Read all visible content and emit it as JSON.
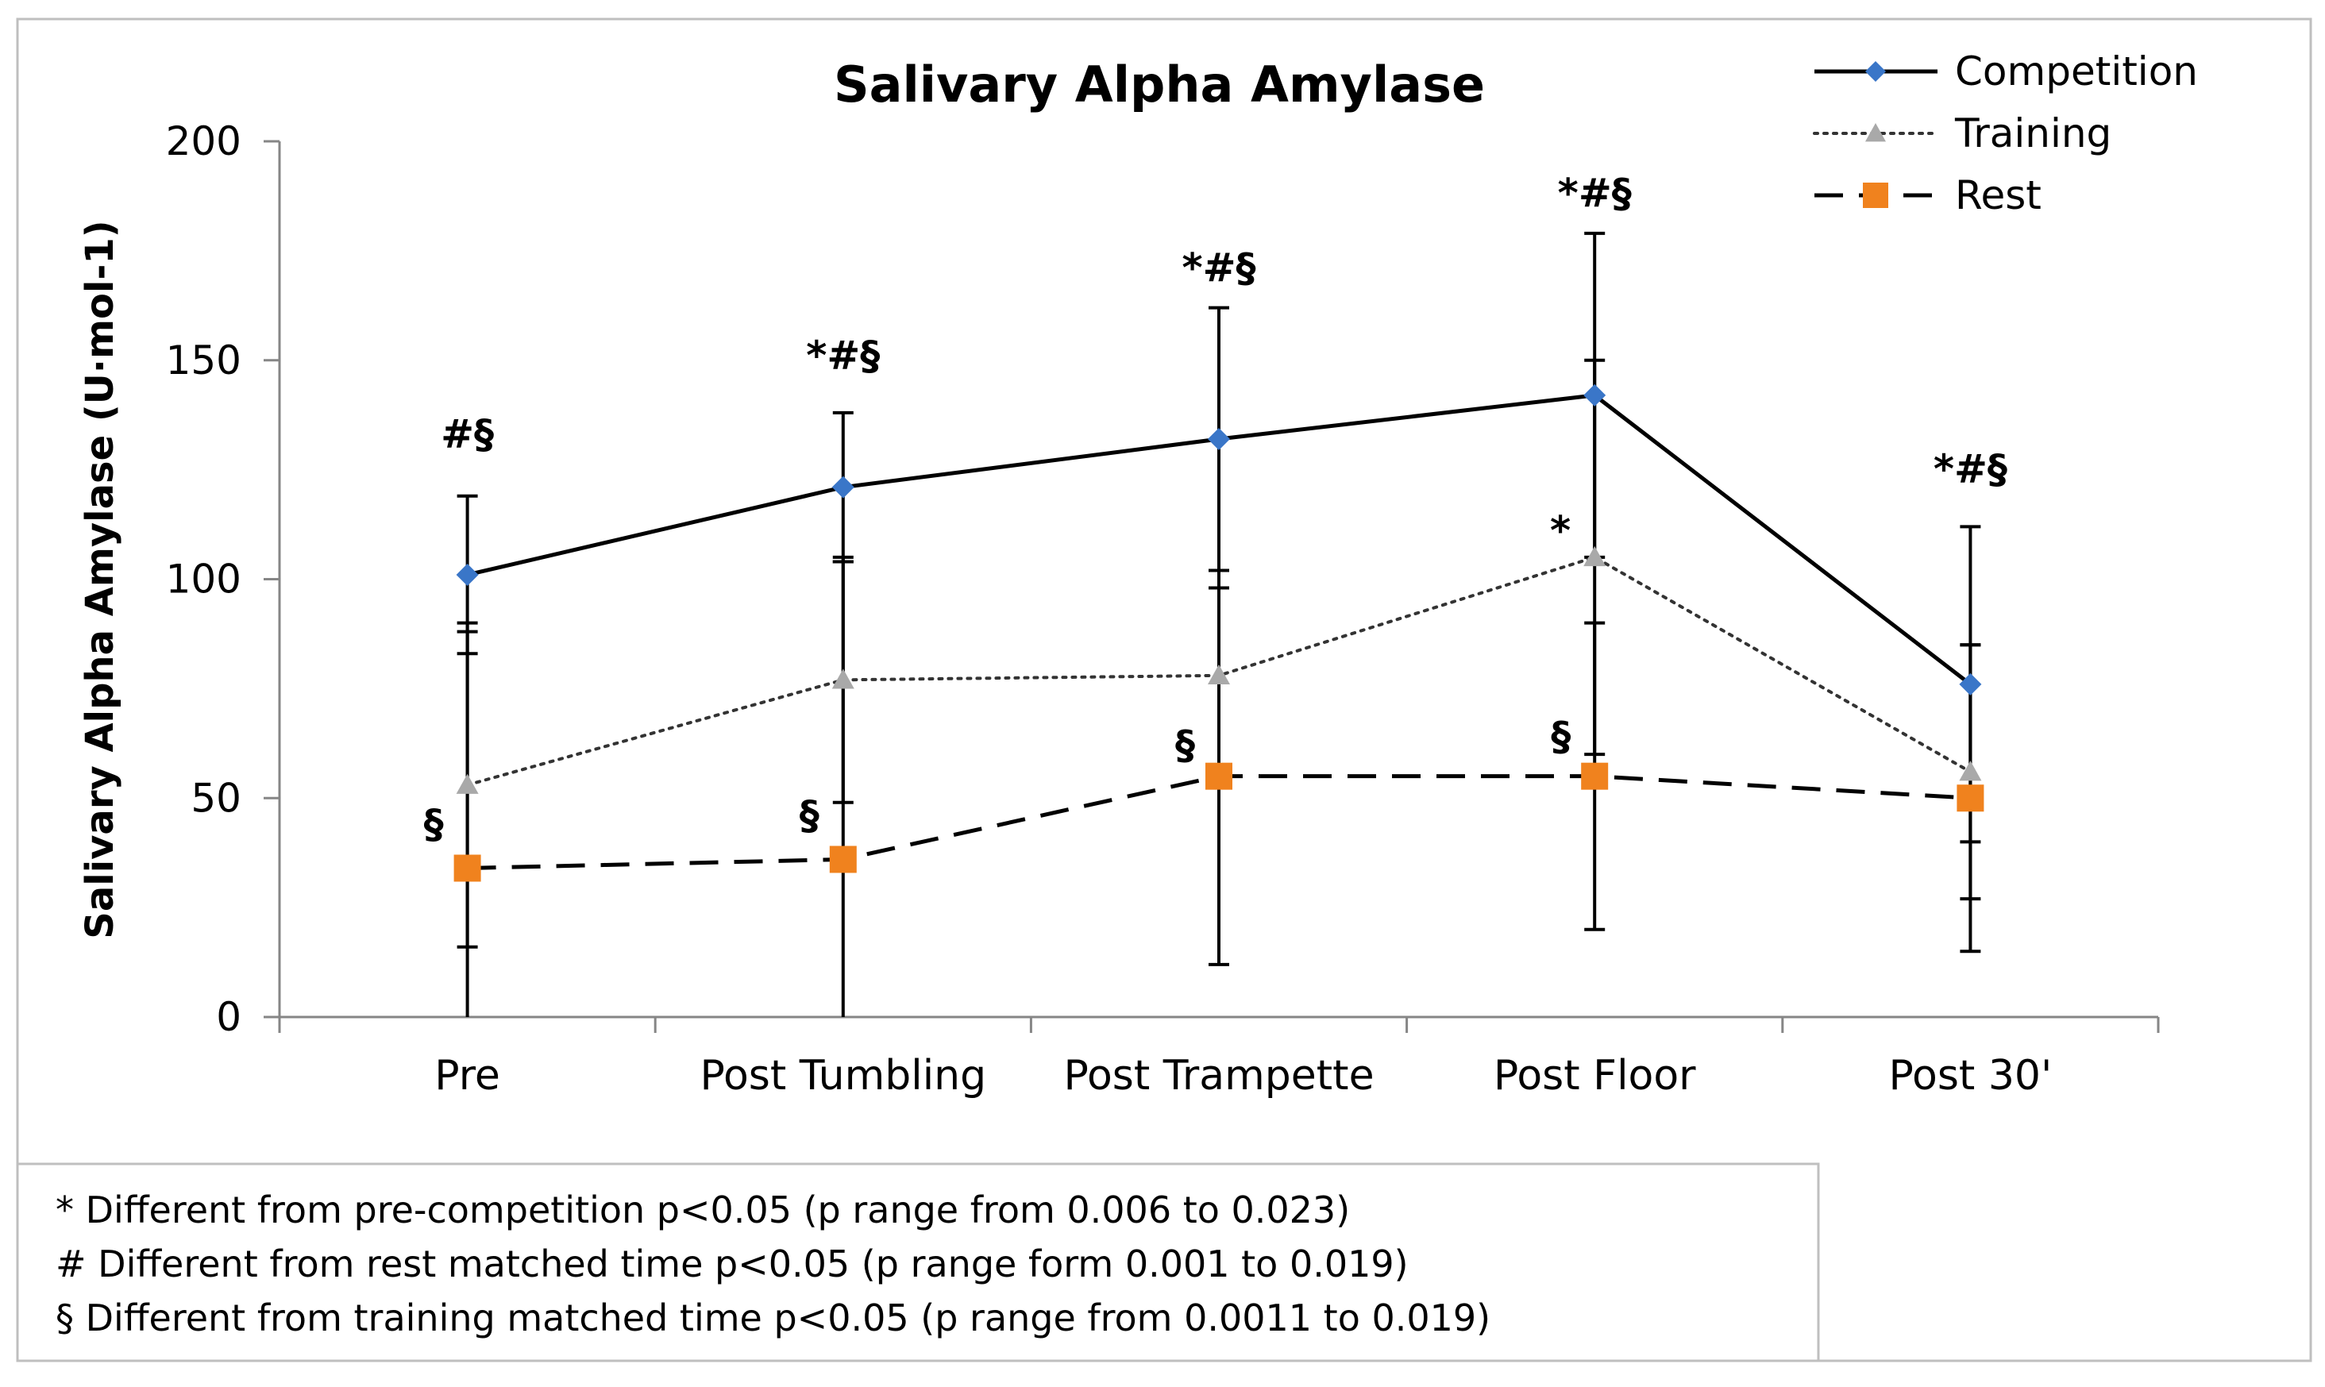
{
  "chart_data": {
    "type": "line",
    "title": "Salivary Alpha Amylase",
    "xlabel": "",
    "ylabel": "Salivary Alpha Amylase (U·mol-1)",
    "ylim": [
      0,
      200
    ],
    "yticks": [
      0,
      50,
      100,
      150,
      200
    ],
    "grid": false,
    "legend_position": "top-right",
    "categories": [
      "Pre",
      "Post Tumbling",
      "Post Trampette",
      "Post Floor",
      "Post 30'"
    ],
    "series": [
      {
        "name": "Competition",
        "color": "#000000",
        "marker_color": "#3a76c8",
        "marker": "diamond",
        "line_style": "solid",
        "values": [
          101,
          121,
          132,
          142,
          76
        ],
        "error": [
          18,
          17,
          30,
          37,
          36
        ]
      },
      {
        "name": "Training",
        "color": "#333333",
        "marker_color": "#a9a9a9",
        "marker": "triangle",
        "line_style": "dotted",
        "values": [
          53,
          77,
          78,
          105,
          56
        ],
        "error": [
          37,
          28,
          24,
          45,
          29
        ]
      },
      {
        "name": "Rest",
        "color": "#000000",
        "marker_color": "#f0821e",
        "marker": "square",
        "line_style": "dashed",
        "values": [
          34,
          36,
          55,
          55,
          50
        ],
        "error": [
          54,
          68,
          43,
          35,
          35
        ]
      }
    ],
    "annotations": [
      {
        "category": "Pre",
        "y": 130,
        "text": "#§"
      },
      {
        "category": "Post Tumbling",
        "y": 148,
        "text": "*#§"
      },
      {
        "category": "Post Trampette",
        "y": 168,
        "text": "*#§"
      },
      {
        "category": "Post Floor",
        "y": 185,
        "text": "*#§"
      },
      {
        "category": "Post 30'",
        "y": 122,
        "text": "*#§"
      },
      {
        "category": "Post Floor",
        "y": 108,
        "text": "*"
      },
      {
        "category": "Pre",
        "y": 41,
        "text": "§"
      },
      {
        "category": "Post Tumbling",
        "y": 43,
        "text": "§"
      },
      {
        "category": "Post Trampette",
        "y": 59,
        "text": "§"
      },
      {
        "category": "Post Floor",
        "y": 61,
        "text": "§"
      }
    ],
    "footnotes": [
      "* Different from pre-competition p<0.05 (p range from 0.006 to 0.023)",
      "# Different from rest matched time p<0.05 (p range form 0.001 to 0.019)",
      "§ Different from training matched time p<0.05 (p range from 0.0011 to  0.019)"
    ]
  }
}
